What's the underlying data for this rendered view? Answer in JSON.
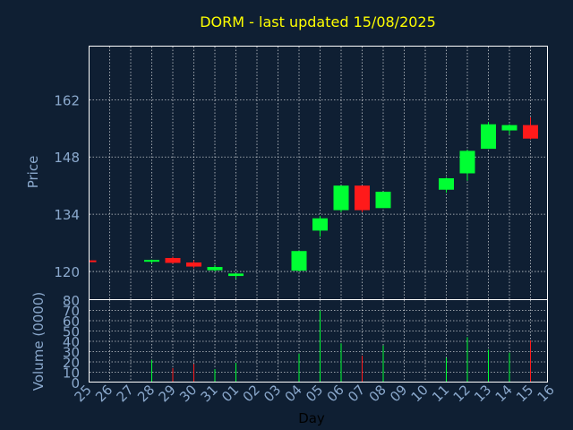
{
  "chart_data": {
    "type": "candlestick",
    "title": "DORM - last updated 15/08/2025",
    "xlabel": "Day",
    "price_panel": {
      "ylabel": "Price",
      "ylim": [
        113,
        175
      ],
      "yticks": [
        120,
        134,
        148,
        162
      ],
      "grid": true
    },
    "volume_panel": {
      "ylabel": "Volume (0000)",
      "ylim": [
        0,
        80
      ],
      "yticks": [
        0,
        10,
        20,
        30,
        40,
        50,
        60,
        70,
        80
      ],
      "grid": true
    },
    "x_tick_labels": [
      "25",
      "26",
      "27",
      "28",
      "29",
      "30",
      "31",
      "01",
      "02",
      "03",
      "04",
      "05",
      "06",
      "07",
      "08",
      "09",
      "10",
      "11",
      "12",
      "13",
      "14",
      "15",
      "16"
    ],
    "candles": [
      {
        "day": "25",
        "open": 122.5,
        "high": 122.5,
        "low": 122.5,
        "close": 122.5,
        "volume": 0,
        "direction": "down"
      },
      {
        "day": "28",
        "open": 122.4,
        "high": 122.9,
        "low": 122.0,
        "close": 122.8,
        "volume": 22,
        "direction": "up"
      },
      {
        "day": "29",
        "open": 123.3,
        "high": 123.6,
        "low": 121.9,
        "close": 122.1,
        "volume": 14,
        "direction": "down"
      },
      {
        "day": "30",
        "open": 122.2,
        "high": 122.7,
        "low": 120.8,
        "close": 121.2,
        "volume": 18,
        "direction": "down"
      },
      {
        "day": "31",
        "open": 120.3,
        "high": 121.6,
        "low": 120.0,
        "close": 121.1,
        "volume": 13,
        "direction": "up"
      },
      {
        "day": "01",
        "open": 118.9,
        "high": 119.6,
        "low": 118.2,
        "close": 119.5,
        "volume": 19,
        "direction": "up"
      },
      {
        "day": "04",
        "open": 120.2,
        "high": 125.0,
        "low": 120.0,
        "close": 125.0,
        "volume": 28,
        "direction": "up"
      },
      {
        "day": "05",
        "open": 130.0,
        "high": 133.6,
        "low": 128.5,
        "close": 133.0,
        "volume": 70,
        "direction": "up"
      },
      {
        "day": "06",
        "open": 135.0,
        "high": 141.0,
        "low": 134.5,
        "close": 141.0,
        "volume": 38,
        "direction": "up"
      },
      {
        "day": "07",
        "open": 141.0,
        "high": 141.0,
        "low": 134.5,
        "close": 135.0,
        "volume": 26,
        "direction": "down"
      },
      {
        "day": "08",
        "open": 135.5,
        "high": 139.5,
        "low": 135.5,
        "close": 139.5,
        "volume": 36,
        "direction": "up"
      },
      {
        "day": "11",
        "open": 140.0,
        "high": 143.0,
        "low": 139.3,
        "close": 142.8,
        "volume": 24,
        "direction": "up"
      },
      {
        "day": "12",
        "open": 144.0,
        "high": 149.8,
        "low": 142.2,
        "close": 149.5,
        "volume": 44,
        "direction": "up"
      },
      {
        "day": "13",
        "open": 150.0,
        "high": 156.6,
        "low": 150.0,
        "close": 156.0,
        "volume": 32,
        "direction": "up"
      },
      {
        "day": "14",
        "open": 154.5,
        "high": 156.0,
        "low": 153.5,
        "close": 155.8,
        "volume": 29,
        "direction": "up"
      },
      {
        "day": "15",
        "open": 155.8,
        "high": 157.7,
        "low": 152.3,
        "close": 152.5,
        "volume": 41,
        "direction": "down"
      }
    ],
    "colors": {
      "background": "#0f1f33",
      "up": "#00ff33",
      "down": "#ff1a1a",
      "title": "#ffff00",
      "axis_text": "#8aa8cc",
      "grid": "#ffffff",
      "frame": "#ffffff",
      "xlabel": "#000000"
    }
  }
}
